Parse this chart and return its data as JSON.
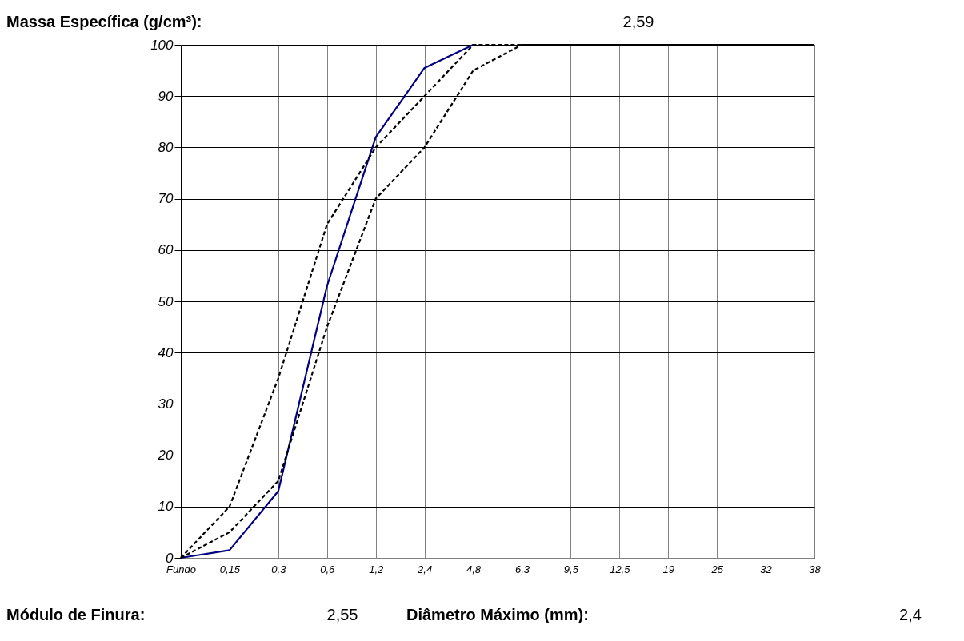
{
  "chart_data": {
    "type": "line",
    "categories": [
      "Fundo",
      "0,15",
      "0,3",
      "0,6",
      "1,2",
      "2,4",
      "4,8",
      "6,3",
      "9,5",
      "12,5",
      "19",
      "25",
      "32",
      "38"
    ],
    "series": [
      {
        "color": "#000080",
        "line_style": "solid",
        "values": [
          0,
          1.5,
          13,
          53,
          82,
          95.5,
          100,
          null,
          null,
          null,
          null,
          null,
          null,
          null
        ]
      },
      {
        "color": "#000000",
        "line_style": "dashed",
        "values": [
          0,
          10,
          35,
          65,
          80,
          90,
          100,
          100,
          100,
          100,
          100,
          100,
          100,
          100
        ]
      },
      {
        "color": "#000000",
        "line_style": "dashed",
        "values": [
          0,
          5,
          15,
          45,
          70,
          80,
          95,
          100,
          100,
          100,
          100,
          100,
          100,
          100
        ]
      }
    ],
    "ylim": [
      0,
      100
    ],
    "yticks": [
      0,
      10,
      20,
      30,
      40,
      50,
      60,
      70,
      80,
      90,
      100
    ],
    "grid": true,
    "marker": "none",
    "annotations": [
      "Massa Específica (g/cm³):",
      "2,59",
      "Módulo de Finura:",
      "2,55",
      "Diâmetro Máximo (mm):",
      "2,4"
    ]
  }
}
